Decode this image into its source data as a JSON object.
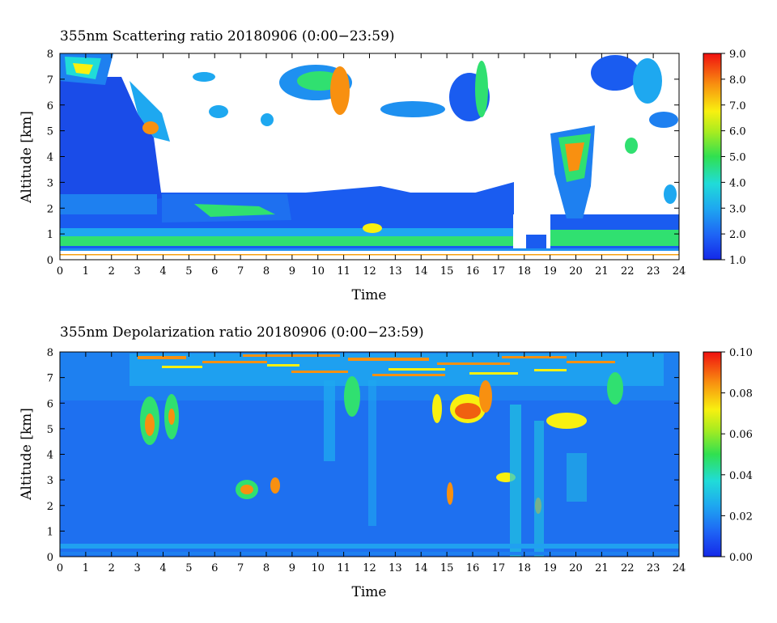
{
  "chart_data": [
    {
      "type": "heatmap",
      "title": "355nm Scattering ratio  20180906 (0:00−23:59)",
      "xlabel": "Time",
      "ylabel": "Altitude [km]",
      "xlim": [
        0,
        24
      ],
      "ylim": [
        0,
        8
      ],
      "x_ticks": [
        "0",
        "1",
        "2",
        "3",
        "4",
        "5",
        "6",
        "7",
        "8",
        "9",
        "10",
        "11",
        "12",
        "13",
        "14",
        "15",
        "16",
        "17",
        "18",
        "19",
        "20",
        "21",
        "22",
        "23",
        "24"
      ],
      "y_ticks": [
        "0",
        "1",
        "2",
        "3",
        "4",
        "5",
        "6",
        "7",
        "8"
      ],
      "colorbar": {
        "min": 1.0,
        "max": 9.0,
        "tick_labels": [
          "1.0",
          "2.0",
          "3.0",
          "4.0",
          "5.0",
          "6.0",
          "7.0",
          "8.0",
          "9.0"
        ]
      },
      "colors": {
        "low": "#0a3cf0",
        "mid": "#22e0d0",
        "high": "#f01010"
      }
    },
    {
      "type": "heatmap",
      "title": "355nm Depolarization ratio  20180906 (0:00−23:59)",
      "xlabel": "Time",
      "ylabel": "Altitude [km]",
      "xlim": [
        0,
        24
      ],
      "ylim": [
        0,
        8
      ],
      "x_ticks": [
        "0",
        "1",
        "2",
        "3",
        "4",
        "5",
        "6",
        "7",
        "8",
        "9",
        "10",
        "11",
        "12",
        "13",
        "14",
        "15",
        "16",
        "17",
        "18",
        "19",
        "20",
        "21",
        "22",
        "23",
        "24"
      ],
      "y_ticks": [
        "0",
        "1",
        "2",
        "3",
        "4",
        "5",
        "6",
        "7",
        "8"
      ],
      "colorbar": {
        "min": 0.0,
        "max": 0.1,
        "tick_labels": [
          "0.00",
          "0.02",
          "0.04",
          "0.06",
          "0.08",
          "0.10"
        ]
      },
      "colors": {
        "low": "#0a3cf0",
        "mid": "#22e0d0",
        "high": "#f01010"
      }
    }
  ]
}
